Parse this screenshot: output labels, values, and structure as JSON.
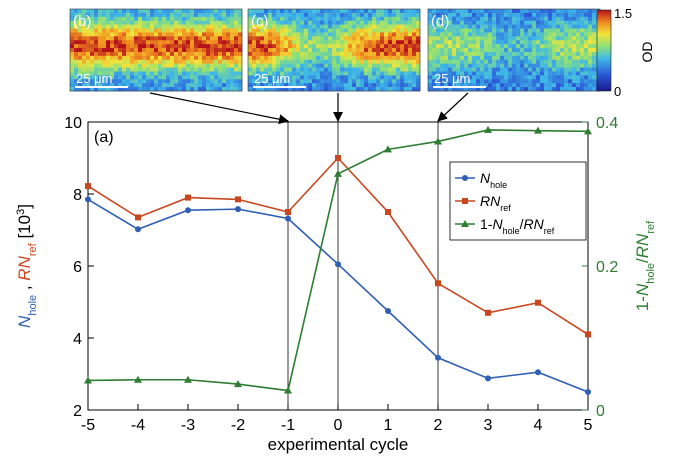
{
  "chart_data": {
    "type": "line",
    "panel_label": "(a)",
    "xlabel": "experimental cycle",
    "ylabel_left": {
      "parts": [
        {
          "text": "N",
          "style": "italic",
          "color": "#2f5fb3"
        },
        {
          "text": "hole",
          "sub": true,
          "color": "#2f5fb3"
        },
        {
          "text": " , ",
          "color": "#000000"
        },
        {
          "text": "RN",
          "style": "italic",
          "color": "#c9471f"
        },
        {
          "text": "ref",
          "sub": true,
          "color": "#c9471f"
        },
        {
          "text": " [10",
          "color": "#000000"
        },
        {
          "text": "3",
          "sup": true,
          "color": "#000000"
        },
        {
          "text": "]",
          "color": "#000000"
        }
      ]
    },
    "ylabel_right": {
      "parts": [
        {
          "text": "1-"
        },
        {
          "text": "N",
          "style": "italic"
        },
        {
          "text": "hole",
          "sub": true
        },
        {
          "text": "/"
        },
        {
          "text": "RN",
          "style": "italic"
        },
        {
          "text": "ref",
          "sub": true
        }
      ]
    },
    "xlim": [
      -5,
      5
    ],
    "ylim_left": [
      2,
      10
    ],
    "ylim_right": [
      0,
      0.4
    ],
    "xticks": [
      "-5",
      "-4",
      "-3",
      "-2",
      "-1",
      "0",
      "1",
      "2",
      "3",
      "4",
      "5"
    ],
    "yticks_left": [
      "2",
      "4",
      "6",
      "8",
      "10"
    ],
    "yticks_right": [
      "0",
      "0.2",
      "0.4"
    ],
    "x": [
      -5,
      -4,
      -3,
      -2,
      -1,
      0,
      1,
      2,
      3,
      4,
      5
    ],
    "series": [
      {
        "axis": "left",
        "color": "#2f5fb3",
        "marker": "circle",
        "values": [
          7.85,
          7.02,
          7.55,
          7.58,
          7.32,
          6.05,
          4.75,
          3.45,
          2.88,
          3.05,
          2.5
        ]
      },
      {
        "axis": "left",
        "color": "#c9471f",
        "marker": "square",
        "values": [
          8.22,
          7.35,
          7.9,
          7.85,
          7.5,
          9.0,
          7.5,
          5.52,
          4.7,
          4.98,
          4.1
        ]
      },
      {
        "axis": "right",
        "color": "#2e7d32",
        "marker": "triangle",
        "values": [
          0.041,
          0.042,
          0.042,
          0.036,
          0.027,
          0.328,
          0.362,
          0.373,
          0.389,
          0.388,
          0.387
        ]
      }
    ],
    "vlines_x": [
      -1,
      0,
      2
    ],
    "legend": {
      "position": "right",
      "entries": [
        {
          "parts": [
            {
              "text": "N",
              "style": "italic"
            },
            {
              "text": "hole",
              "sub": true
            }
          ]
        },
        {
          "parts": [
            {
              "text": "RN",
              "style": "italic"
            },
            {
              "text": "ref",
              "sub": true
            }
          ]
        },
        {
          "parts": [
            {
              "text": "1-"
            },
            {
              "text": "N",
              "style": "italic"
            },
            {
              "text": "hole",
              "sub": true
            },
            {
              "text": "/"
            },
            {
              "text": "RN",
              "style": "italic"
            },
            {
              "text": "ref",
              "sub": true
            }
          ]
        }
      ]
    },
    "insets": [
      {
        "label": "(b)",
        "scalebar": "25 μm",
        "points_to_x": -1,
        "profile": "full"
      },
      {
        "label": "(c)",
        "scalebar": "25 μm",
        "points_to_x": 0,
        "profile": "hole"
      },
      {
        "label": "(d)",
        "scalebar": "25 μm",
        "points_to_x": 2,
        "profile": "faint"
      }
    ],
    "colorbar": {
      "label": "OD",
      "max": "1.5",
      "min": "0"
    }
  }
}
